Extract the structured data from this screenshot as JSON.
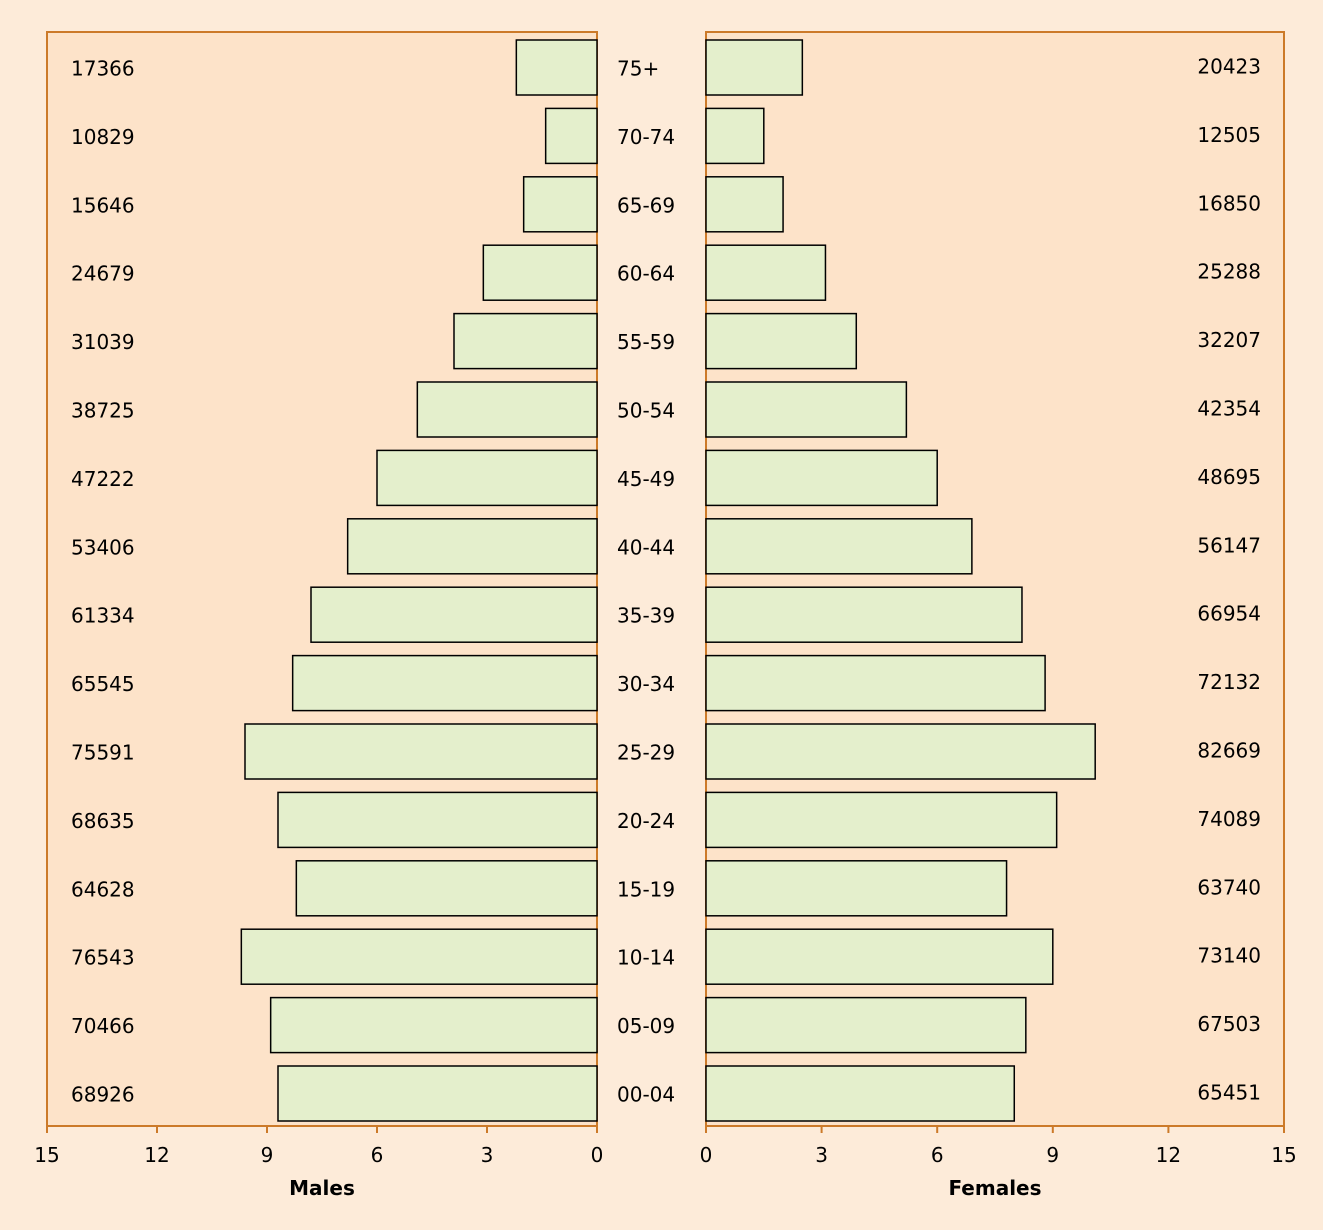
{
  "chart_data": {
    "type": "bar",
    "orientation": "horizontal",
    "layout": "population-pyramid",
    "age_groups": [
      "75+",
      "70-74",
      "65-69",
      "60-64",
      "55-59",
      "50-54",
      "45-49",
      "40-44",
      "35-39",
      "30-34",
      "25-29",
      "20-24",
      "15-19",
      "10-14",
      "05-09",
      "00-04"
    ],
    "series": [
      {
        "name": "Males",
        "percent": [
          2.2,
          1.4,
          2.0,
          3.1,
          3.9,
          4.9,
          6.0,
          6.8,
          7.8,
          8.3,
          9.6,
          8.7,
          8.2,
          9.7,
          8.9,
          8.7
        ],
        "counts": [
          "17366",
          "10829",
          "15646",
          "24679",
          "31039",
          "38725",
          "47222",
          "53406",
          "61334",
          "65545",
          "75591",
          "68635",
          "64628",
          "76543",
          "70466",
          "68926"
        ]
      },
      {
        "name": "Females",
        "percent": [
          2.5,
          1.5,
          2.0,
          3.1,
          3.9,
          5.2,
          6.0,
          6.9,
          8.2,
          8.8,
          10.1,
          9.1,
          7.8,
          9.0,
          8.3,
          8.0
        ],
        "counts": [
          "20423",
          "12505",
          "16850",
          "25288",
          "32207",
          "42354",
          "48695",
          "56147",
          "66954",
          "72132",
          "82669",
          "74089",
          "63740",
          "73140",
          "67503",
          "65451"
        ]
      }
    ],
    "xlim": [
      0,
      15
    ],
    "x_ticks": [
      "0",
      "3",
      "6",
      "9",
      "12",
      "15"
    ],
    "males_xlabel": "Males",
    "females_xlabel": "Females",
    "grid": false,
    "colors": {
      "page_bg": "#fdebd9",
      "plot_bg": "#fde3c9",
      "axis": "#cc7a29",
      "bar_fill": "#e4efcc",
      "bar_stroke": "#000000"
    }
  }
}
